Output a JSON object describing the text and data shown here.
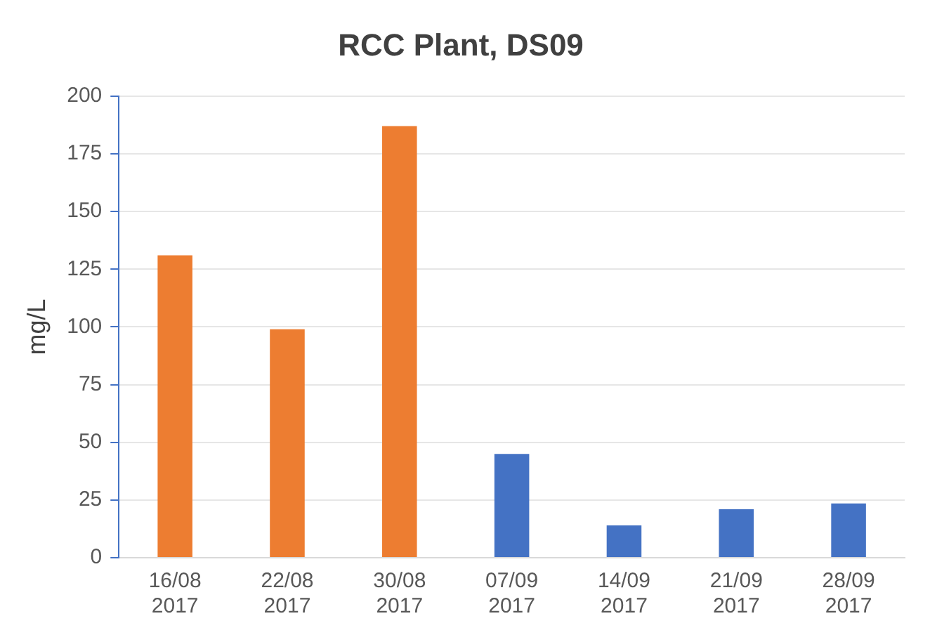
{
  "chart_data": {
    "type": "bar",
    "title": "RCC Plant, DS09",
    "ylabel": "mg/L",
    "categories": [
      "16/08 2017",
      "22/08 2017",
      "30/08 2017",
      "07/09 2017",
      "14/09 2017",
      "21/09 2017",
      "28/09 2017"
    ],
    "values": [
      131,
      99,
      187,
      45,
      14,
      21,
      23.5
    ],
    "colors": [
      "#ed7d31",
      "#ed7d31",
      "#ed7d31",
      "#4472c4",
      "#4472c4",
      "#4472c4",
      "#4472c4"
    ],
    "ylim": [
      0,
      200
    ],
    "yticks": [
      0,
      25,
      50,
      75,
      100,
      125,
      150,
      175,
      200
    ],
    "grid": "y",
    "legend": false
  }
}
